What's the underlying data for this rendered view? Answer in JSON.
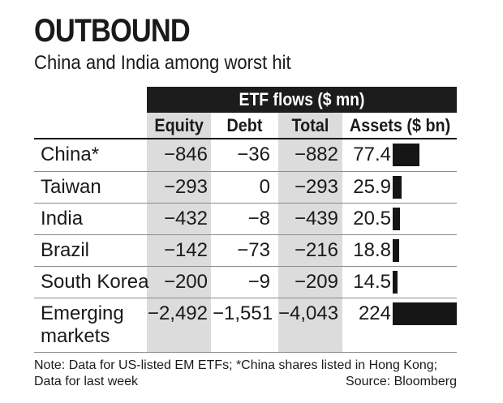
{
  "title": "OUTBOUND",
  "subtitle": "China and India among worst hit",
  "flows_header": "ETF flows ($ mn)",
  "columns": [
    "Equity",
    "Debt",
    "Total",
    "Assets ($ bn)"
  ],
  "chart_data": {
    "type": "table",
    "title": "OUTBOUND",
    "subtitle": "China and India among worst hit",
    "group_header": "ETF flows ($ mn)",
    "columns": [
      "Equity",
      "Debt",
      "Total",
      "Assets ($ bn)"
    ],
    "rows": [
      {
        "market": "China*",
        "equity": "−846",
        "debt": "−36",
        "total": "−882",
        "assets": "77.4",
        "assets_value": 77.4
      },
      {
        "market": "Taiwan",
        "equity": "−293",
        "debt": "0",
        "total": "−293",
        "assets": "25.9",
        "assets_value": 25.9
      },
      {
        "market": "India",
        "equity": "−432",
        "debt": "−8",
        "total": "−439",
        "assets": "20.5",
        "assets_value": 20.5
      },
      {
        "market": "Brazil",
        "equity": "−142",
        "debt": "−73",
        "total": "−216",
        "assets": "18.8",
        "assets_value": 18.8
      },
      {
        "market": "South Korea",
        "equity": "−200",
        "debt": "−9",
        "total": "−209",
        "assets": "14.5",
        "assets_value": 14.5
      },
      {
        "market": "Emerging markets",
        "equity": "−2,492",
        "debt": "−1,551",
        "total": "−4,043",
        "assets": "224",
        "assets_value": 224
      }
    ]
  },
  "note": "Note: Data for US-listed EM ETFs; *China shares listed in Hong Kong; Data for last week",
  "source": "Source: Bloomberg",
  "colors": {
    "header_bg": "#1c1c1c",
    "shade": "#dcdcdc",
    "bar": "#151515",
    "text": "#1a1a1a"
  }
}
